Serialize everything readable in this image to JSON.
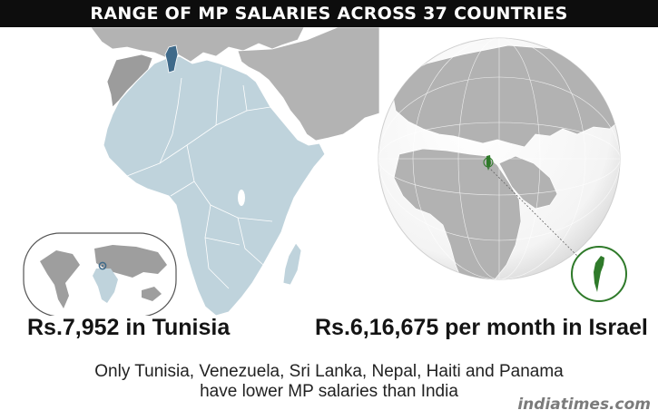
{
  "title": "RANGE OF MP SALARIES ACROSS 37 COUNTRIES",
  "left_map": {
    "caption": "Rs.7,952 in Tunisia",
    "highlight_country": "Tunisia"
  },
  "right_map": {
    "caption": "Rs.6,16,675 per month in Israel",
    "highlight_country": "Israel"
  },
  "note": {
    "line1": "Only  Tunisia, Venezuela, Sri Lanka, Nepal, Haiti and Panama",
    "line2": "have lower MP salaries than India"
  },
  "brand": "indiatimes.com",
  "colors": {
    "title_bar": "#0d0d0d",
    "africa_land": "#bfd3dc",
    "other_land": "#b3b3b3",
    "tunisia": "#3f6a8a",
    "israel": "#2f7a2a",
    "globe_land": "#b2b2b2",
    "globe_ocean": "#ffffff"
  },
  "icons": [
    "tunisia-locator-icon",
    "israel-zoom-icon"
  ]
}
